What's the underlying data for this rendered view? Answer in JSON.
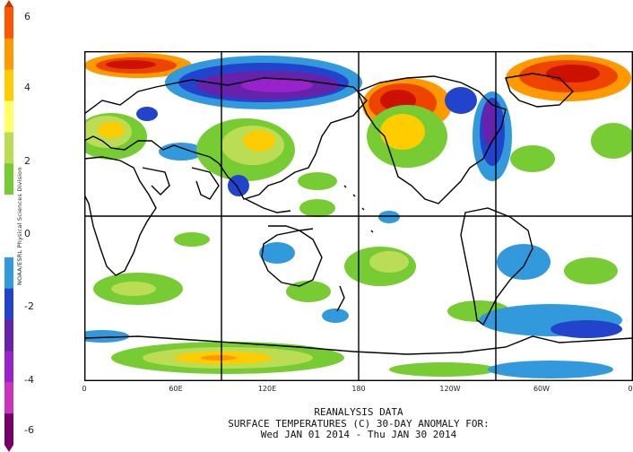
{
  "colorbar": {
    "ticks": [
      "6",
      "4",
      "2",
      "0",
      "-2",
      "-4",
      "-6"
    ],
    "colors": [
      "#ff5500",
      "#ff9900",
      "#ffcc00",
      "#ffff66",
      "#bbdd55",
      "#77cc33",
      "#ffffff",
      "#ffffff",
      "#3399dd",
      "#2244cc",
      "#6622aa",
      "#9922cc",
      "#cc33bb",
      "#770066"
    ]
  },
  "side_credit": "NOAA/ESRL Physical Sciences Division",
  "longitude_labels": [
    "0",
    "60E",
    "120E",
    "180",
    "120W",
    "60W",
    "0"
  ],
  "caption": {
    "line1": "REANALYSIS DATA",
    "line2": "SURFACE TEMPERATURES (C)   30-DAY ANOMALY FOR:",
    "line3": "Wed JAN 01 2014 - Thu JAN 30 2014"
  },
  "map": {
    "anomaly_colors": {
      "deep_red": "#cc1100",
      "red": "#ee4400",
      "orange": "#ff9900",
      "yellow": "#ffcc00",
      "light_yellow": "#ffff66",
      "light_green": "#bbdd55",
      "green": "#77cc33",
      "light_blue": "#3399dd",
      "blue": "#2244cc",
      "purple": "#6622aa",
      "violet": "#9922cc"
    }
  }
}
